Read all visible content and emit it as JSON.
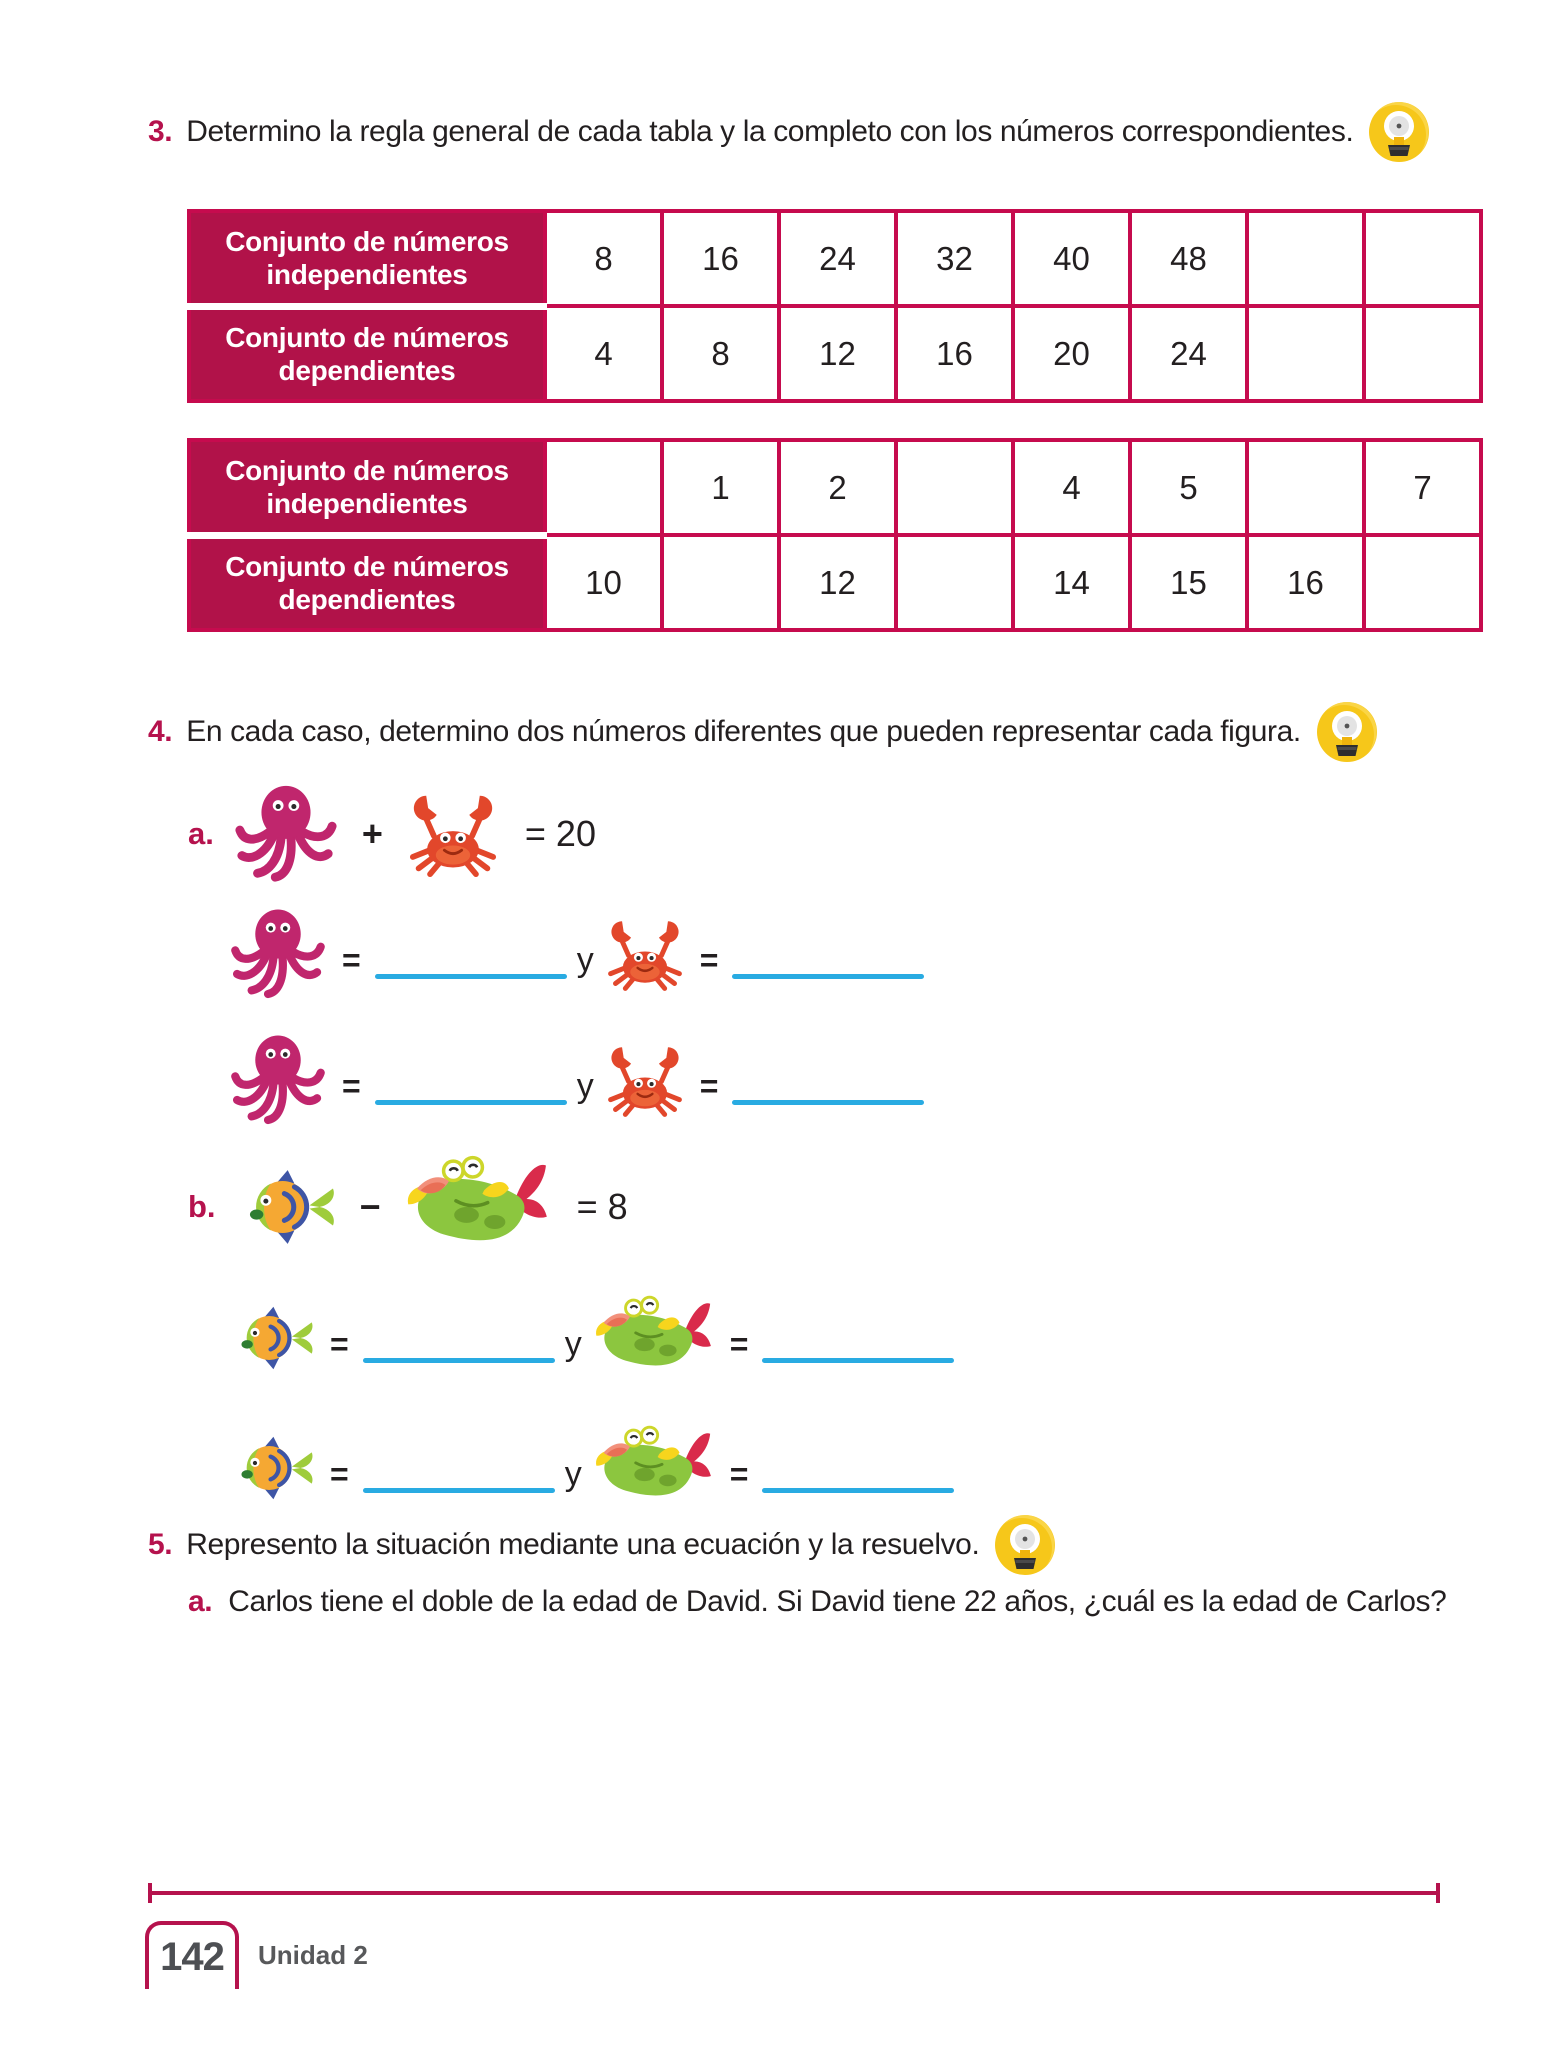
{
  "colors": {
    "crimson": "#b5124d",
    "table_fill": "#b11249",
    "table_border": "#c60b4e",
    "blue_line": "#29abe2",
    "footer_gray": "#58595b"
  },
  "exercise3": {
    "number": "3.",
    "text": "Determino la regla general de cada tabla y la completo con los números correspondientes.",
    "tables": [
      {
        "row1_header": "Conjunto de números independientes",
        "row2_header": "Conjunto de números dependientes",
        "row1": [
          "8",
          "16",
          "24",
          "32",
          "40",
          "48",
          "",
          ""
        ],
        "row2": [
          "4",
          "8",
          "12",
          "16",
          "20",
          "24",
          "",
          ""
        ]
      },
      {
        "row1_header": "Conjunto de números independientes",
        "row2_header": "Conjunto de números dependientes",
        "row1": [
          "",
          "1",
          "2",
          "",
          "4",
          "5",
          "",
          "7"
        ],
        "row2": [
          "10",
          "",
          "12",
          "",
          "14",
          "15",
          "16",
          ""
        ]
      }
    ]
  },
  "exercise4": {
    "number": "4.",
    "text": "En cada caso, determino dos números diferentes que pueden representar cada figura.",
    "part_a_label": "a.",
    "plus": "+",
    "result_a": "= 20",
    "part_b_label": "b.",
    "minus": "−",
    "result_b": "= 8",
    "equals": "=",
    "connector": "y"
  },
  "exercise5": {
    "number": "5.",
    "text": "Represento la situación mediante una ecuación y la resuelvo.",
    "part_a_label": "a.",
    "part_a_text": "Carlos tiene el doble de la edad de David. Si David tiene 22 años, ¿cuál es la edad de Carlos?"
  },
  "footer": {
    "page_number": "142",
    "unit": "Unidad 2"
  }
}
